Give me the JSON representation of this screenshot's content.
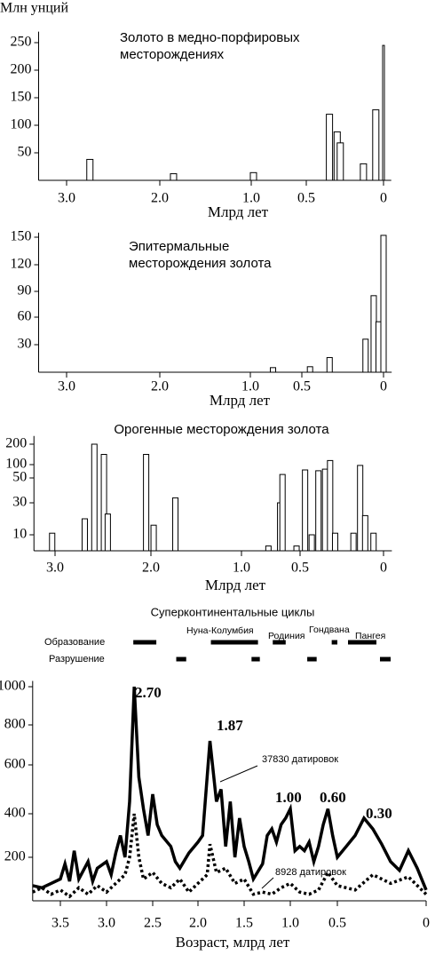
{
  "chart_data": [
    {
      "type": "bar",
      "title": "Золото в медно-порфировых месторождениях",
      "y_label": "Млн унций",
      "x_label": "Млрд лет",
      "x": [
        2.75,
        1.85,
        0.98,
        0.35,
        0.3,
        0.28,
        0.13,
        0.05,
        0.0
      ],
      "values": [
        38,
        12,
        14,
        120,
        88,
        68,
        30,
        128,
        245
      ],
      "xlim": [
        3.3,
        -0.05
      ],
      "ylim": [
        0,
        270
      ],
      "xticks": [
        {
          "value": 3,
          "label": "3.0"
        },
        {
          "value": 2,
          "label": "2.0"
        },
        {
          "value": 1,
          "label": "1.0"
        },
        0.5,
        0
      ],
      "yticks": [
        50,
        100,
        150,
        200,
        250
      ],
      "color": "#ffffff"
    },
    {
      "type": "bar",
      "title": "Эпитермальные месторождения золота",
      "x_label": "Млрд лет",
      "x": [
        0.78,
        0.45,
        0.33,
        0.11,
        0.06,
        0.03,
        0.0
      ],
      "values": [
        5,
        6,
        16,
        36,
        85,
        55,
        152
      ],
      "xlim": [
        3.3,
        -0.05
      ],
      "ylim": [
        0,
        155
      ],
      "xticks": [
        {
          "value": 3,
          "label": "3.0"
        },
        {
          "value": 2,
          "label": "2.0"
        },
        {
          "value": 1,
          "label": "1.0"
        },
        0.5,
        0
      ],
      "yticks": [
        30,
        60,
        90,
        120,
        150
      ],
      "color": "#ffffff"
    },
    {
      "type": "bar",
      "title": "Орогенные месторождения золота",
      "x_label": "Млрд лет",
      "x": [
        3.03,
        2.69,
        2.59,
        2.49,
        2.45,
        2.05,
        1.97,
        1.73,
        0.77,
        0.67,
        0.65,
        0.53,
        0.47,
        0.43,
        0.39,
        0.35,
        0.32,
        0.29,
        0.18,
        0.14,
        0.11,
        0.06
      ],
      "values": [
        11,
        20,
        200,
        150,
        23,
        150,
        16,
        34,
        3,
        30,
        63,
        3,
        80,
        10,
        77,
        83,
        120,
        11,
        11,
        97,
        22,
        11
      ],
      "xlim": [
        3.22,
        -0.05
      ],
      "ylim": [
        0,
        240
      ],
      "xticks": [
        {
          "value": 3,
          "label": "3.0"
        },
        {
          "value": 2,
          "label": "2.0"
        },
        {
          "value": 1,
          "label": "1.0"
        },
        0.5,
        0
      ],
      "yticks": [
        10,
        30,
        50,
        100,
        200
      ],
      "color": "#ffffff"
    },
    {
      "type": "line",
      "x_label": "Возраст, млрд лет",
      "annotations": [
        "2.70",
        "1.87",
        "1.00",
        "0.60",
        "0.30"
      ],
      "series": [
        {
          "name": "37830 датировок",
          "color": "#000000",
          "style": "solid",
          "x": [
            3.8,
            3.7,
            3.6,
            3.5,
            3.45,
            3.4,
            3.35,
            3.3,
            3.2,
            3.15,
            3.1,
            3.0,
            2.95,
            2.9,
            2.85,
            2.8,
            2.75,
            2.7,
            2.65,
            2.6,
            2.55,
            2.5,
            2.45,
            2.4,
            2.3,
            2.25,
            2.2,
            2.1,
            2.0,
            1.95,
            1.87,
            1.8,
            1.75,
            1.7,
            1.65,
            1.6,
            1.55,
            1.5,
            1.45,
            1.4,
            1.3,
            1.25,
            1.2,
            1.15,
            1.1,
            1.05,
            1.0,
            0.95,
            0.9,
            0.85,
            0.8,
            0.75,
            0.7,
            0.65,
            0.6,
            0.55,
            0.5,
            0.45,
            0.4,
            0.35,
            0.3,
            0.25,
            0.2,
            0.15,
            0.1,
            0.05,
            0
          ],
          "values": [
            70,
            60,
            80,
            100,
            170,
            90,
            230,
            100,
            180,
            90,
            150,
            180,
            120,
            220,
            300,
            200,
            450,
            1000,
            550,
            420,
            300,
            480,
            350,
            300,
            250,
            180,
            150,
            220,
            270,
            300,
            720,
            450,
            500,
            250,
            450,
            200,
            380,
            250,
            180,
            100,
            170,
            300,
            330,
            270,
            350,
            380,
            420,
            230,
            250,
            230,
            270,
            180,
            250,
            350,
            420,
            300,
            200,
            250,
            300,
            380,
            330,
            260,
            180,
            140,
            230,
            150,
            50
          ]
        },
        {
          "name": "8928 датировок",
          "color": "#000000",
          "style": "dotted",
          "x": [
            3.8,
            3.7,
            3.6,
            3.5,
            3.4,
            3.3,
            3.2,
            3.1,
            3.0,
            2.9,
            2.8,
            2.75,
            2.7,
            2.65,
            2.6,
            2.5,
            2.4,
            2.3,
            2.2,
            2.1,
            2.0,
            1.9,
            1.87,
            1.8,
            1.7,
            1.6,
            1.5,
            1.4,
            1.3,
            1.2,
            1.1,
            1.0,
            0.9,
            0.8,
            0.7,
            0.6,
            0.5,
            0.4,
            0.3,
            0.2,
            0.1,
            0
          ],
          "values": [
            40,
            60,
            30,
            50,
            20,
            60,
            30,
            70,
            40,
            80,
            120,
            200,
            400,
            200,
            100,
            130,
            80,
            60,
            100,
            40,
            80,
            120,
            260,
            130,
            150,
            80,
            100,
            30,
            40,
            30,
            60,
            80,
            40,
            30,
            50,
            130,
            70,
            50,
            120,
            80,
            110,
            30
          ]
        }
      ],
      "xlim": [
        3.8,
        0
      ],
      "ylim": [
        0,
        1030
      ],
      "xticks": [
        3.5,
        {
          "value": 3,
          "label": "3.0"
        },
        2.5,
        {
          "value": 2,
          "label": "2.0"
        },
        1.5,
        {
          "value": 1,
          "label": "1.0"
        },
        0.5,
        0
      ],
      "yticks": [
        200,
        400,
        600,
        800,
        1000
      ],
      "periods": {
        "title": "Суперконтинентальные циклы",
        "rows": [
          {
            "name": "Образование",
            "intervals": [
              [
                2.71,
                2.46
              ],
              [
                1.86,
                1.35
              ],
              [
                1.19,
                1.05
              ],
              [
                0.56,
                0.5
              ],
              [
                0.44,
                0.28
              ]
            ]
          },
          {
            "name": "Разрушение",
            "intervals": [
              [
                2.24,
                2.13
              ],
              [
                1.42,
                1.33
              ],
              [
                0.82,
                0.72
              ],
              [
                0.26,
                0.2
              ]
            ]
          }
        ],
        "labels": [
          "Нуна-Колумбия",
          "Родиния",
          "Гондвана",
          "Пангея"
        ]
      }
    }
  ]
}
